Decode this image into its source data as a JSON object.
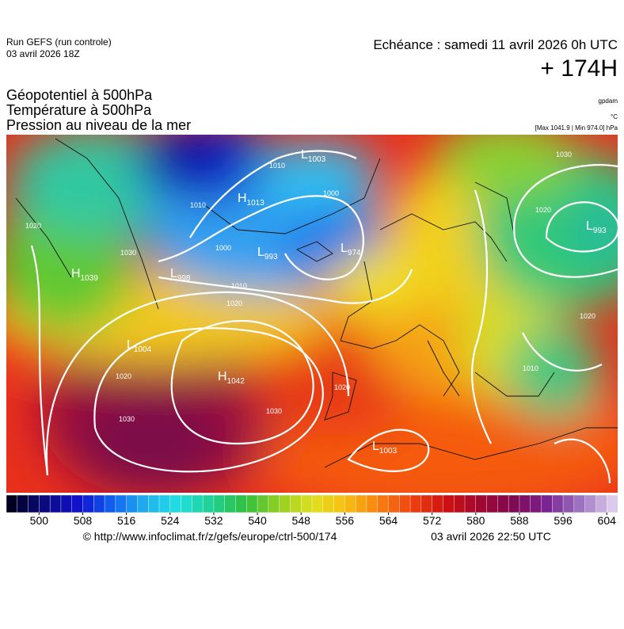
{
  "header": {
    "run": "Run GEFS (run controle)",
    "run_date": "03 avril 2026 18Z",
    "valid": "Echéance : samedi 11 avril 2026 0h UTC",
    "lead": "+ 174H",
    "titles": [
      "Géopotentiel à 500hPa",
      "Température à 500hPa",
      "Pression au niveau de la mer"
    ],
    "units": [
      "gpdam",
      "°C",
      "[Max 1041.9 | Min 974.0] hPa"
    ]
  },
  "pressure_centers": [
    {
      "kind": "H",
      "value": 1039
    },
    {
      "kind": "L",
      "value": 998
    },
    {
      "kind": "H",
      "value": 1013
    },
    {
      "kind": "L",
      "value": 1003
    },
    {
      "kind": "L",
      "value": 993
    },
    {
      "kind": "L",
      "value": 974
    },
    {
      "kind": "L",
      "value": 1004
    },
    {
      "kind": "H",
      "value": 1042
    },
    {
      "kind": "L",
      "value": 1003
    },
    {
      "kind": "L",
      "value": 993
    }
  ],
  "isobar_labels": [
    1010,
    1010,
    1000,
    1000,
    1010,
    1020,
    1020,
    1030,
    1030,
    1020,
    1030,
    1020,
    1020,
    1030,
    1020,
    1010
  ],
  "colorbar": {
    "range": [
      494,
      606
    ],
    "ticks": [
      500,
      508,
      516,
      524,
      532,
      540,
      548,
      556,
      564,
      572,
      580,
      588,
      596,
      604
    ]
  },
  "footer": {
    "source": "© http://www.infoclimat.fr/z/gefs/europe/ctrl-500/174",
    "generated": "03 avril 2026 22:50 UTC"
  }
}
